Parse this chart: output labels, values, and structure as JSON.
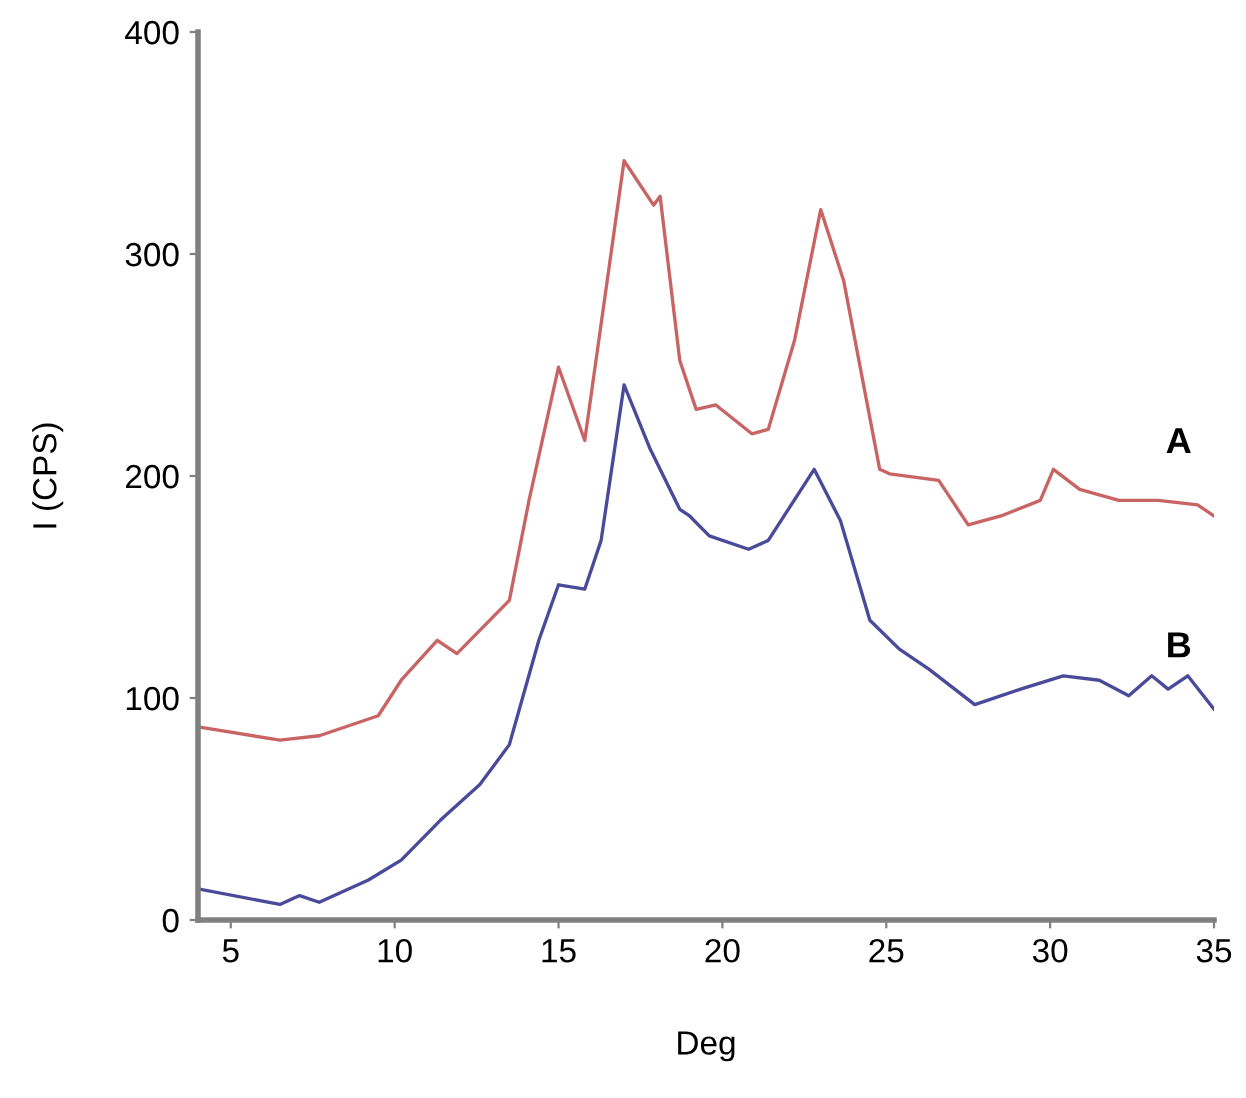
{
  "chart_data": {
    "type": "line",
    "xlabel": "Deg",
    "ylabel": "I (CPS)",
    "xlim": [
      4,
      35
    ],
    "ylim": [
      0,
      400
    ],
    "xticks": [
      5,
      10,
      15,
      20,
      25,
      30,
      35
    ],
    "yticks": [
      0,
      100,
      200,
      300,
      400
    ],
    "grid": false,
    "legend": false,
    "marker": "none",
    "line_style": "solid",
    "series": [
      {
        "name": "A",
        "color": "#c86464",
        "x": [
          4,
          6.5,
          7.7,
          9.5,
          10.2,
          11.3,
          11.9,
          13.5,
          14.1,
          15,
          15.8,
          17,
          17.9,
          18.1,
          18.7,
          19.2,
          19.8,
          20.9,
          21.4,
          22.2,
          23,
          23.7,
          24.8,
          25.1,
          26.6,
          27.5,
          28.5,
          29.7,
          30.1,
          30.9,
          32.1,
          33.3,
          34.5,
          35
        ],
        "values": [
          87,
          81,
          83,
          92,
          108,
          126,
          120,
          144,
          189,
          249,
          216,
          342,
          322,
          326,
          252,
          230,
          232,
          219,
          221,
          261,
          320,
          288,
          203,
          201,
          198,
          178,
          182,
          189,
          203,
          194,
          189,
          189,
          187,
          182
        ]
      },
      {
        "name": "B",
        "color": "#4a4a9a",
        "x": [
          4,
          6.5,
          7.1,
          7.7,
          9.2,
          10.2,
          11.4,
          12.6,
          13.5,
          14.4,
          15,
          15.8,
          16.3,
          17,
          17.8,
          18.7,
          19,
          19.6,
          20.8,
          21.4,
          22.8,
          23.6,
          24.5,
          25.4,
          26.3,
          27.7,
          29.1,
          30.4,
          31.5,
          32.4,
          33.1,
          33.6,
          34.2,
          35
        ],
        "values": [
          14,
          7,
          11,
          8,
          18,
          27,
          45,
          61,
          79,
          126,
          151,
          149,
          171,
          241,
          212,
          185,
          182,
          173,
          167,
          171,
          203,
          180,
          135,
          122,
          113,
          97,
          104,
          110,
          108,
          101,
          110,
          104,
          110,
          95
        ]
      }
    ]
  }
}
